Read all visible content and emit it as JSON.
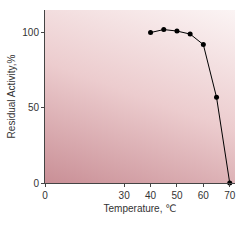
{
  "chart_data": {
    "type": "line",
    "x_label": "Temperature, ℃",
    "y_label": "Residual Activity,%",
    "x": [
      40,
      45,
      50,
      55,
      60,
      65,
      70
    ],
    "values": [
      100,
      102,
      101,
      99,
      92,
      57,
      0
    ],
    "color": "#000000",
    "marker": "circle",
    "xlim": [
      0,
      72
    ],
    "xticks": [
      0,
      30,
      40,
      50,
      60,
      70
    ],
    "ylim": [
      0,
      115
    ],
    "yticks": [
      0,
      50,
      100
    ],
    "grid": false
  }
}
